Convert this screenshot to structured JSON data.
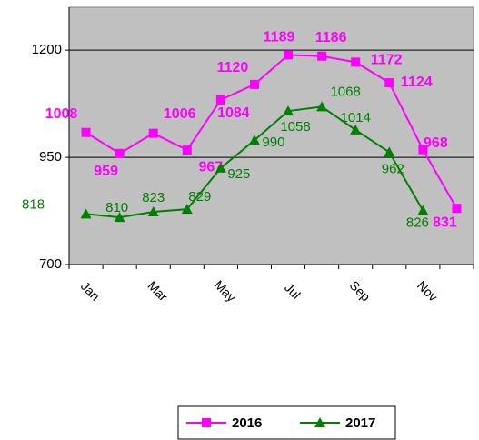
{
  "chart_data": {
    "type": "line",
    "categories": [
      "Jan",
      null,
      "Mar",
      null,
      "May",
      null,
      "Jul",
      null,
      "Sep",
      null,
      "Nov",
      null
    ],
    "series": [
      {
        "name": "2016",
        "color": "#ff00ff",
        "marker": "square",
        "values": [
          1008,
          959,
          1006,
          967,
          1084,
          1120,
          1189,
          1186,
          1172,
          1124,
          968,
          831
        ]
      },
      {
        "name": "2017",
        "color": "#008000",
        "marker": "triangle",
        "values": [
          818,
          810,
          823,
          829,
          925,
          990,
          1058,
          1068,
          1014,
          962,
          826,
          null
        ]
      }
    ],
    "ylim": [
      700,
      1300
    ],
    "yticks": [
      700,
      950,
      1200
    ],
    "grid": true,
    "legend": "bottom"
  }
}
